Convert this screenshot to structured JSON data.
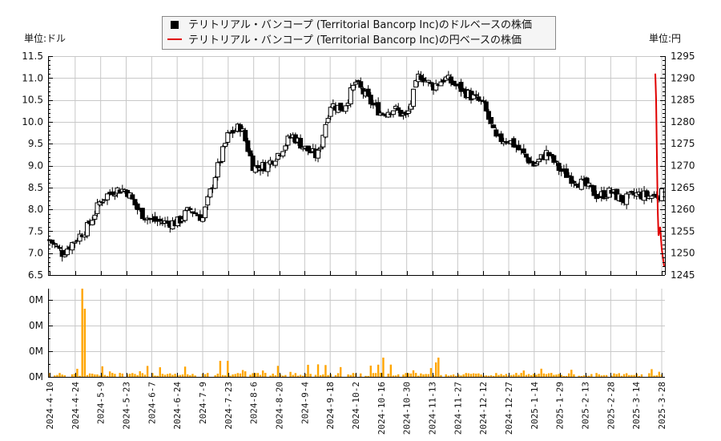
{
  "legend": {
    "usd_label": "テリトリアル・バンコープ (Territorial Bancorp Inc)のドルベースの株価",
    "jpy_label": "テリトリアル・バンコープ (Territorial Bancorp Inc)の円ベースの株価"
  },
  "units": {
    "left": "単位:ドル",
    "right": "単位:円"
  },
  "colors": {
    "candle": "#000000",
    "jpy_line": "#e00000",
    "volume": "#ffa500",
    "grid": "#c8c8c8"
  },
  "chart_data": [
    {
      "type": "candlestick",
      "title": "テリトリアル・バンコープ (Territorial Bancorp Inc) 株価",
      "ylabel_left": "単位:ドル",
      "ylabel_right": "単位:円",
      "ylim_left": [
        6.5,
        11.5
      ],
      "ylim_right": [
        1245,
        1295
      ],
      "yticks_left": [
        "11.5",
        "11.0",
        "10.5",
        "10.0",
        "9.5",
        "9.0",
        "8.5",
        "8.0",
        "7.5",
        "7.0",
        "6.5"
      ],
      "yticks_right": [
        "1295",
        "1290",
        "1285",
        "1280",
        "1275",
        "1270",
        "1265",
        "1260",
        "1255",
        "1250",
        "1245"
      ],
      "x_tick_labels": [
        "2024-4-10",
        "2024-4-24",
        "2024-5-9",
        "2024-5-23",
        "2024-6-7",
        "2024-6-24",
        "2024-7-9",
        "2024-7-23",
        "2024-8-6",
        "2024-8-20",
        "2024-9-4",
        "2024-9-18",
        "2024-10-2",
        "2024-10-16",
        "2024-10-30",
        "2024-11-13",
        "2024-11-27",
        "2024-12-12",
        "2024-12-27",
        "2025-1-14",
        "2025-1-29",
        "2025-2-13",
        "2025-2-28",
        "2025-3-14",
        "2025-3-28"
      ],
      "grid": true,
      "legend_position": "top-center",
      "series": [
        {
          "name": "ドルベースの株価 (close, approx.)",
          "points": [
            [
              "2024-4-10",
              7.3
            ],
            [
              "2024-4-17",
              7.0
            ],
            [
              "2024-4-24",
              7.3
            ],
            [
              "2024-4-30",
              7.6
            ],
            [
              "2024-5-9",
              8.2
            ],
            [
              "2024-5-16",
              8.45
            ],
            [
              "2024-5-23",
              8.45
            ],
            [
              "2024-5-29",
              7.95
            ],
            [
              "2024-6-7",
              7.75
            ],
            [
              "2024-6-14",
              7.7
            ],
            [
              "2024-6-24",
              7.7
            ],
            [
              "2024-7-1",
              8.0
            ],
            [
              "2024-7-9",
              7.8
            ],
            [
              "2024-7-15",
              8.8
            ],
            [
              "2024-7-23",
              9.7
            ],
            [
              "2024-7-30",
              9.9
            ],
            [
              "2024-8-6",
              8.95
            ],
            [
              "2024-8-13",
              9.0
            ],
            [
              "2024-8-20",
              9.3
            ],
            [
              "2024-8-27",
              9.7
            ],
            [
              "2024-9-4",
              9.4
            ],
            [
              "2024-9-11",
              9.2
            ],
            [
              "2024-9-18",
              10.4
            ],
            [
              "2024-9-25",
              10.3
            ],
            [
              "2024-10-2",
              10.9
            ],
            [
              "2024-10-9",
              10.5
            ],
            [
              "2024-10-16",
              10.2
            ],
            [
              "2024-10-23",
              10.3
            ],
            [
              "2024-10-30",
              10.1
            ],
            [
              "2024-11-6",
              11.1
            ],
            [
              "2024-11-13",
              10.8
            ],
            [
              "2024-11-20",
              11.0
            ],
            [
              "2024-11-27",
              10.8
            ],
            [
              "2024-12-5",
              10.6
            ],
            [
              "2024-12-12",
              10.4
            ],
            [
              "2024-12-19",
              9.6
            ],
            [
              "2024-12-27",
              9.6
            ],
            [
              "2025-1-6",
              9.3
            ],
            [
              "2025-1-14",
              9.0
            ],
            [
              "2025-1-21",
              9.3
            ],
            [
              "2025-1-29",
              8.9
            ],
            [
              "2025-2-6",
              8.7
            ],
            [
              "2025-2-13",
              8.55
            ],
            [
              "2025-2-20",
              8.3
            ],
            [
              "2025-2-28",
              8.4
            ],
            [
              "2025-3-7",
              8.2
            ],
            [
              "2025-3-14",
              8.35
            ],
            [
              "2025-3-21",
              8.3
            ],
            [
              "2025-3-28",
              8.35
            ]
          ]
        },
        {
          "name": "円ベースの株価 (approx.)",
          "points": [
            [
              "2025-3-24",
              1291
            ],
            [
              "2025-3-25",
              1285
            ],
            [
              "2025-3-25",
              1272
            ],
            [
              "2025-3-26",
              1260
            ],
            [
              "2025-3-26",
              1254
            ],
            [
              "2025-3-27",
              1256
            ],
            [
              "2025-3-28",
              1251
            ],
            [
              "2025-3-31",
              1247
            ]
          ]
        }
      ]
    },
    {
      "type": "bar",
      "title": "出来高",
      "yticks": [
        "0M",
        "0M",
        "0M",
        "0M"
      ],
      "note": "volume axis labels all render as 0M; largest spike around 2024-4-29"
    }
  ]
}
